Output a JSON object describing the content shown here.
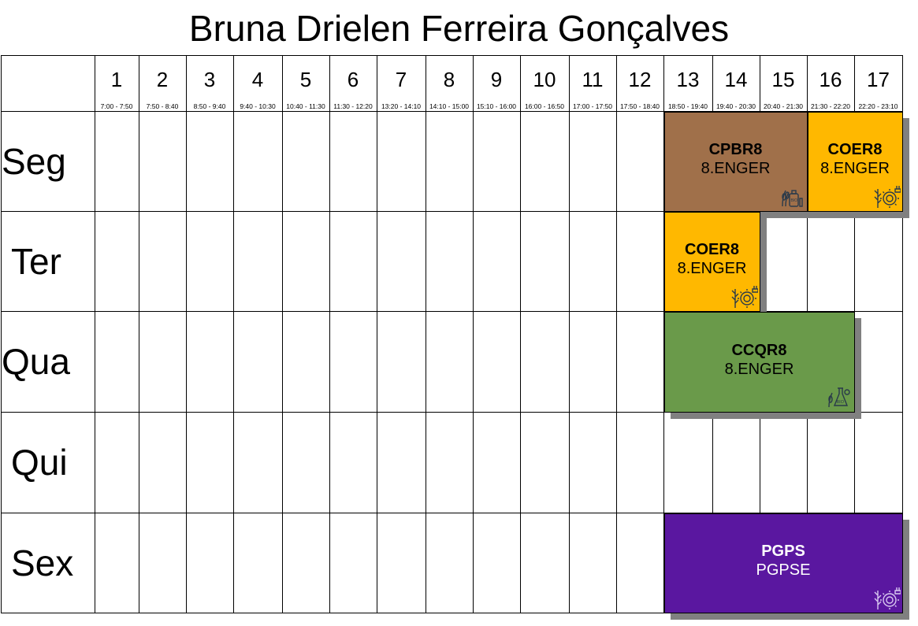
{
  "title": "Bruna Drielen Ferreira Gonçalves",
  "periods": [
    {
      "num": "1",
      "time": "7:00 - 7:50"
    },
    {
      "num": "2",
      "time": "7:50 - 8:40"
    },
    {
      "num": "3",
      "time": "8:50 - 9:40"
    },
    {
      "num": "4",
      "time": "9:40 - 10:30"
    },
    {
      "num": "5",
      "time": "10:40 - 11:30"
    },
    {
      "num": "6",
      "time": "11:30 - 12:20"
    },
    {
      "num": "7",
      "time": "13:20 - 14:10"
    },
    {
      "num": "8",
      "time": "14:10 - 15:00"
    },
    {
      "num": "9",
      "time": "15:10 - 16:00"
    },
    {
      "num": "10",
      "time": "16:00 - 16:50"
    },
    {
      "num": "11",
      "time": "17:00 - 17:50"
    },
    {
      "num": "12",
      "time": "17:50 - 18:40"
    },
    {
      "num": "13",
      "time": "18:50 - 19:40"
    },
    {
      "num": "14",
      "time": "19:40 - 20:30"
    },
    {
      "num": "15",
      "time": "20:40 - 21:30"
    },
    {
      "num": "16",
      "time": "21:30 - 22:20"
    },
    {
      "num": "17",
      "time": "22:20 - 23:10"
    }
  ],
  "days": [
    "Seg",
    "Ter",
    "Qua",
    "Qui",
    "Sex"
  ],
  "classes": [
    {
      "code": "CPBR8",
      "room": "8.ENGER",
      "day": 0,
      "start": 13,
      "end": 15,
      "color": "#a0704a",
      "text_color": "#000000",
      "icon": "bio-plant-icon"
    },
    {
      "code": "COER8",
      "room": "8.ENGER",
      "day": 0,
      "start": 16,
      "end": 17,
      "color": "#ffb800",
      "text_color": "#000000",
      "icon": "energy-plant-icon"
    },
    {
      "code": "COER8",
      "room": "8.ENGER",
      "day": 1,
      "start": 13,
      "end": 14,
      "color": "#ffb800",
      "text_color": "#000000",
      "icon": "energy-plant-icon"
    },
    {
      "code": "CCQR8",
      "room": "8.ENGER",
      "day": 2,
      "start": 13,
      "end": 16,
      "color": "#6a9a4a",
      "text_color": "#000000",
      "icon": "bio-flask-icon"
    },
    {
      "code": "PGPS",
      "room": "PGPSE",
      "day": 4,
      "start": 13,
      "end": 17,
      "color": "#5a17a0",
      "text_color": "#ffffff",
      "icon": "energy-plant-icon"
    }
  ]
}
